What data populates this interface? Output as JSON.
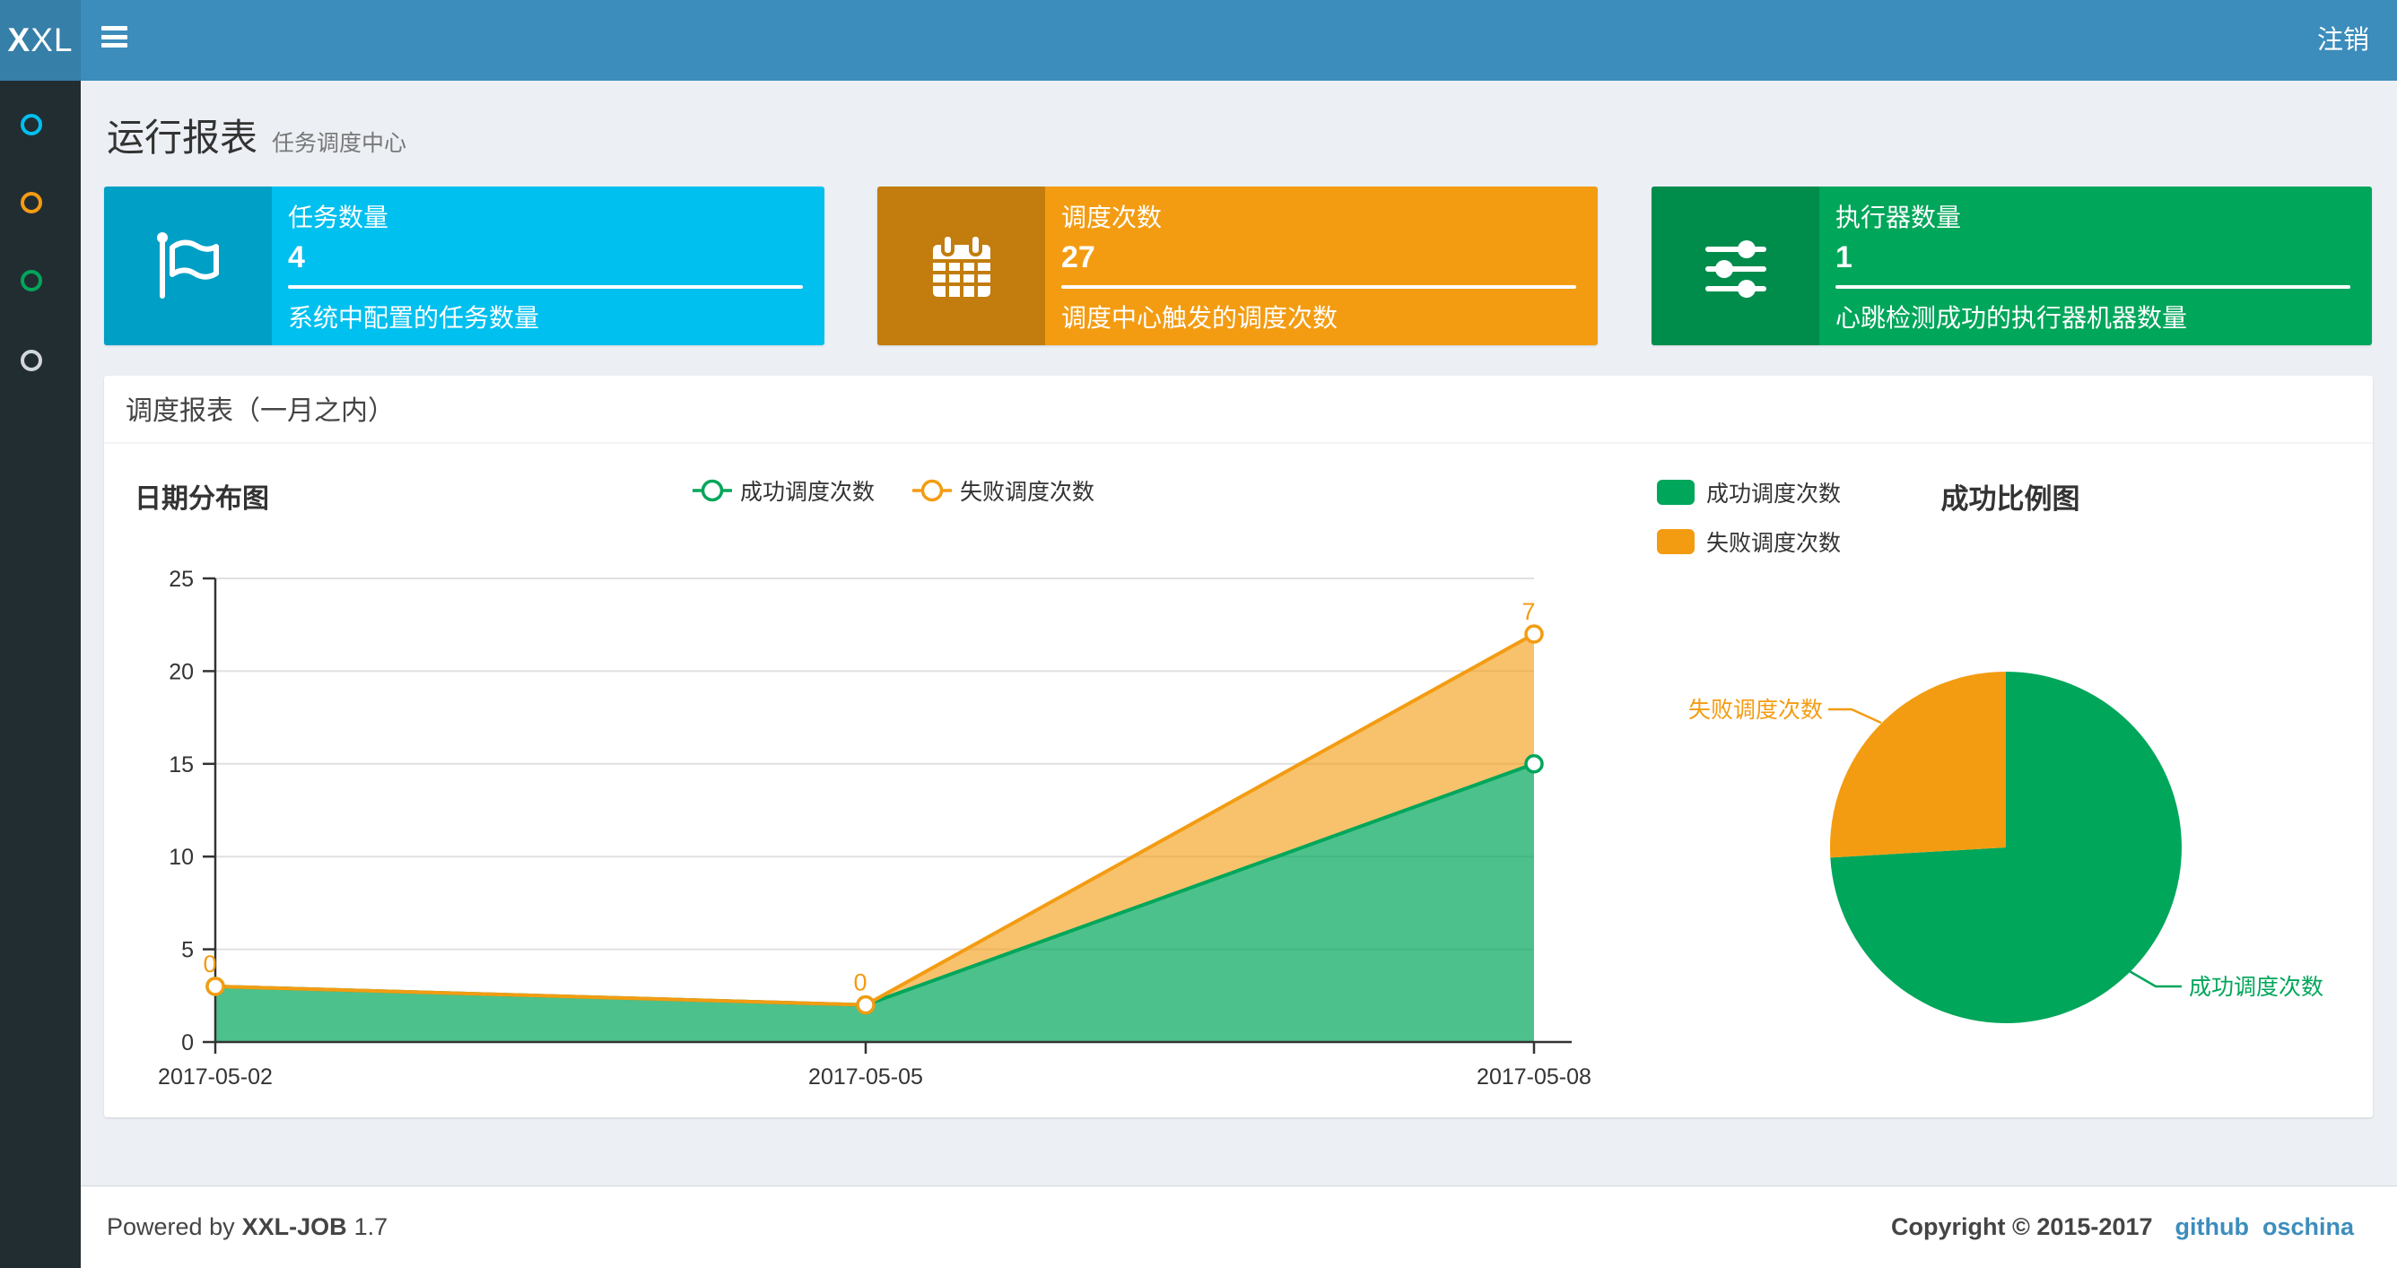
{
  "navbar": {
    "logo": {
      "bold": "X",
      "rest": "XL"
    },
    "logout_label": "注销"
  },
  "sidebar": {
    "items": [
      {
        "name": "menu-item-1",
        "color": "#00c0ef"
      },
      {
        "name": "menu-item-2",
        "color": "#f39c12"
      },
      {
        "name": "menu-item-3",
        "color": "#00a65a"
      },
      {
        "name": "menu-item-4",
        "color": "#d2d6de"
      }
    ]
  },
  "page_header": {
    "title": "运行报表",
    "subtitle": "任务调度中心"
  },
  "cards": [
    {
      "icon": "flag-icon",
      "title": "任务数量",
      "value": "4",
      "description": "系统中配置的任务数量",
      "color": "#00c0ef",
      "icon_color": "#009fc6"
    },
    {
      "icon": "calendar-icon",
      "title": "调度次数",
      "value": "27",
      "description": "调度中心触发的调度次数",
      "color": "#f39c12",
      "icon_color": "#c27d0e"
    },
    {
      "icon": "sliders-icon",
      "title": "执行器数量",
      "value": "1",
      "description": "心跳检测成功的执行器机器数量",
      "color": "#00a65a",
      "icon_color": "#008d4c"
    }
  ],
  "panel": {
    "title": "调度报表（一月之内）"
  },
  "chart_data": [
    {
      "type": "area",
      "title": "日期分布图",
      "x": [
        "2017-05-02",
        "2017-05-05",
        "2017-05-08"
      ],
      "series": [
        {
          "name": "成功调度次数",
          "values": [
            3,
            2,
            15
          ],
          "color": "#00a65a",
          "stacked": false
        },
        {
          "name": "失败调度次数",
          "values": [
            0,
            0,
            7
          ],
          "color": "#f39c12",
          "stacked": true,
          "point_labels": [
            "0",
            "0",
            "7"
          ]
        }
      ],
      "ylim": [
        0,
        25
      ],
      "yticks": [
        0,
        5,
        10,
        15,
        20,
        25
      ],
      "grid": true,
      "legend_position": "top-center",
      "marker": "hollow-circle"
    },
    {
      "type": "pie",
      "title": "成功比例图",
      "slices": [
        {
          "name": "成功调度次数",
          "value": 20,
          "color": "#00a65a"
        },
        {
          "name": "失败调度次数",
          "value": 7,
          "color": "#f39c12"
        }
      ],
      "total": 27,
      "legend_position": "top-left"
    }
  ],
  "footer": {
    "powered_by_prefix": "Powered by",
    "product": "XXL-JOB",
    "version": "1.7",
    "copyright": "Copyright © 2015-2017",
    "links": [
      {
        "label": "github"
      },
      {
        "label": "oschina"
      }
    ],
    "link_color": "#3c8dbc"
  }
}
